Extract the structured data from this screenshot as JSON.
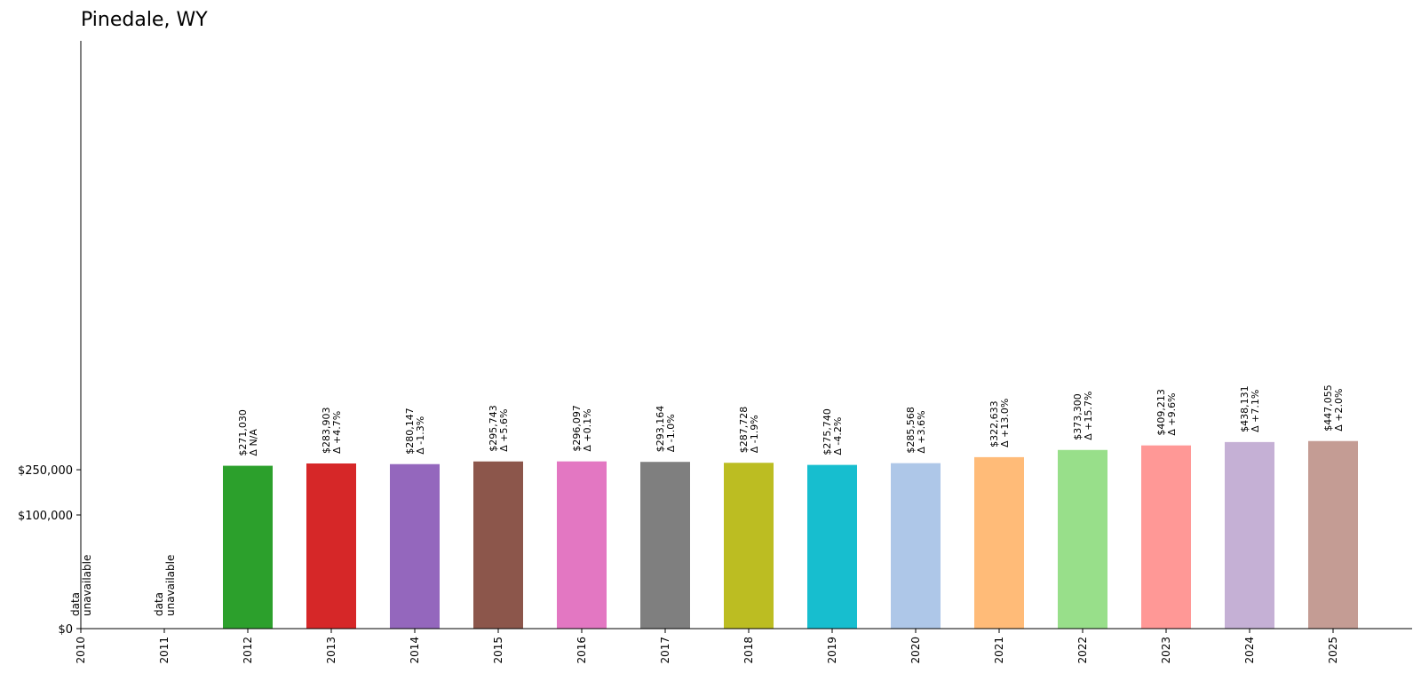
{
  "chart_data": {
    "type": "bar",
    "title": "Pinedale, WY",
    "xlabel": "",
    "ylabel": "",
    "categories": [
      "2010",
      "2011",
      "2012",
      "2013",
      "2014",
      "2015",
      "2016",
      "2017",
      "2018",
      "2019",
      "2020",
      "2021",
      "2022",
      "2023",
      "2024",
      "2025"
    ],
    "values": [
      null,
      null,
      271030,
      283903,
      280147,
      295743,
      296097,
      293164,
      287728,
      275740,
      285568,
      322633,
      373300,
      409213,
      438131,
      447055
    ],
    "value_labels": [
      "",
      "",
      "$271,030",
      "$283,903",
      "$280,147",
      "$295,743",
      "$296,097",
      "$293,164",
      "$287,728",
      "$275,740",
      "$285,568",
      "$322,633",
      "$373,300",
      "$409,213",
      "$438,131",
      "$447,055"
    ],
    "change_labels": [
      "",
      "",
      "Δ N/A",
      "Δ +4.7%",
      "Δ -1.3%",
      "Δ +5.6%",
      "Δ +0.1%",
      "Δ -1.0%",
      "Δ -1.9%",
      "Δ -4.2%",
      "Δ +3.6%",
      "Δ +13.0%",
      "Δ +15.7%",
      "Δ +9.6%",
      "Δ +7.1%",
      "Δ +2.0%"
    ],
    "missing_label": [
      "data",
      "unavailable"
    ],
    "colors": [
      "#1f77b4",
      "#ff7f0e",
      "#2ca02c",
      "#d62728",
      "#9467bd",
      "#8c564b",
      "#e377c2",
      "#7f7f7f",
      "#bcbd22",
      "#17becf",
      "#aec7e8",
      "#ffbb78",
      "#98df8a",
      "#ff9896",
      "#c5b0d5",
      "#c49c94"
    ],
    "yticks": [
      0,
      100000,
      250000
    ],
    "ytick_labels": [
      "$0",
      "$100,000",
      "$250,000"
    ],
    "yscale": "symlog",
    "ylim": [
      0,
      1000000
    ],
    "grid": false,
    "legend": "none"
  }
}
